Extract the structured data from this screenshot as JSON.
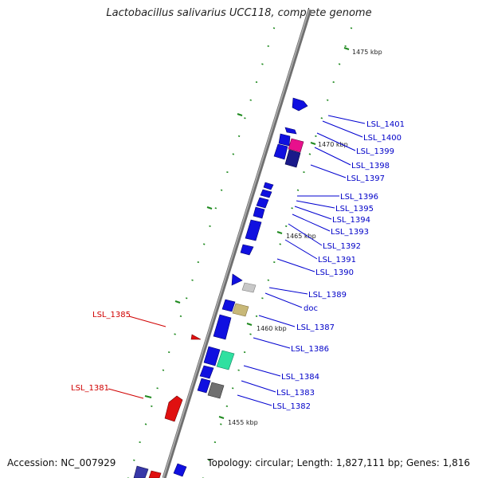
{
  "title": "Lactobacillus salivarius UCC118, complete genome",
  "footer": {
    "accession": "Accession: NC_007929",
    "stats": "Topology: circular; Length: 1,827,111 bp; Genes: 1,816"
  },
  "colors": {
    "backbone": "#8a8a8a",
    "tick": "#1f8a1f",
    "gene_forward_label": "#0000c8",
    "gene_other_label": "#d00000",
    "blue_gene": "#1010e0",
    "red_gene": "#e01010"
  },
  "kbp_markers": [
    "1455 kbp",
    "1460 kbp",
    "1465 kbp",
    "1470 kbp",
    "1475 kbp"
  ],
  "gene_labels_right": [
    "LSL_1401",
    "LSL_1400",
    "LSL_1399",
    "LSL_1398",
    "LSL_1397",
    "LSL_1396",
    "LSL_1395",
    "LSL_1394",
    "LSL_1393",
    "LSL_1392",
    "LSL_1391",
    "LSL_1390",
    "LSL_1389",
    "doc",
    "LSL_1387",
    "LSL_1386",
    "LSL_1384",
    "LSL_1383",
    "LSL_1382"
  ],
  "gene_labels_left": [
    "LSL_1385",
    "LSL_1381"
  ]
}
